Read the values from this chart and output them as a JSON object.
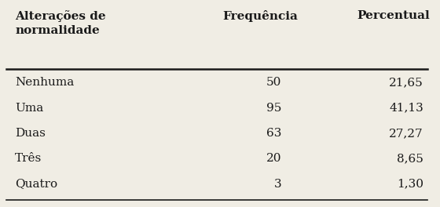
{
  "header_col1": "Alterações de\nnormalidade",
  "header_col2": "Frequência",
  "header_col3": "Percentual",
  "rows": [
    [
      "Nenhuma",
      "50",
      "21,65"
    ],
    [
      "Uma",
      "95",
      "41,13"
    ],
    [
      "Duas",
      "63",
      "27,27"
    ],
    [
      "Três",
      "20",
      "8,65"
    ],
    [
      "Quatro",
      "3",
      "1,30"
    ]
  ],
  "bg_color": "#f0ede4",
  "text_color": "#1a1a1a",
  "header_fontsize": 11,
  "body_fontsize": 11,
  "figsize": [
    5.6,
    2.64
  ],
  "dpi": 100
}
